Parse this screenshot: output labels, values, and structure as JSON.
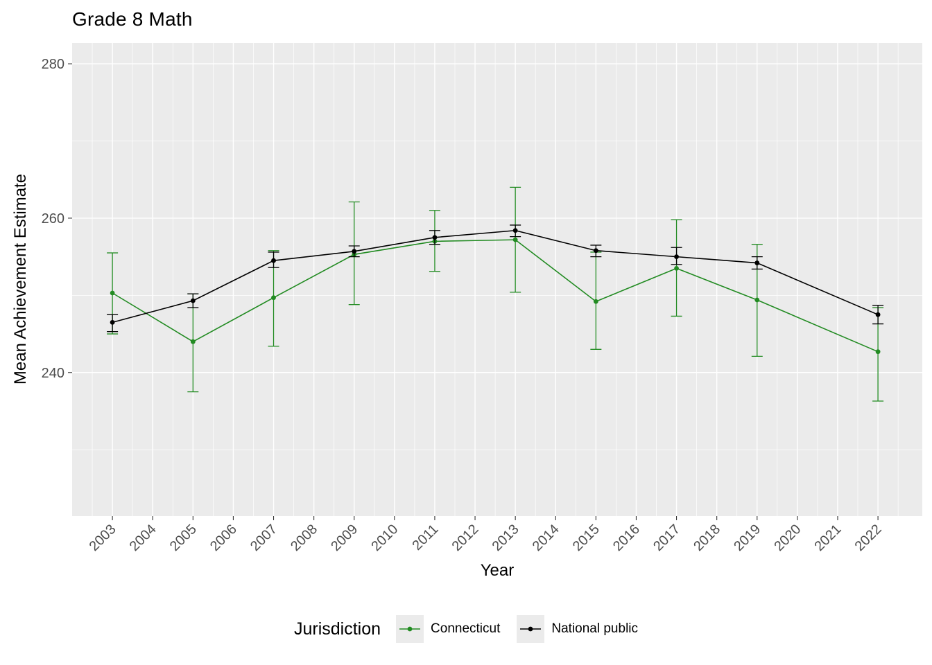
{
  "chart_data": {
    "type": "line",
    "title": "Grade 8 Math",
    "xlabel": "Year",
    "ylabel": "Mean Achievement Estimate",
    "legend_title": "Jurisdiction",
    "legend_position": "bottom",
    "panel_background": "#EBEBEB",
    "grid_color": "#FFFFFF",
    "tick_color": "#333333",
    "tick_label_color": "#4D4D4D",
    "grid": true,
    "error_bars": true,
    "x_ticks": [
      2003,
      2004,
      2005,
      2006,
      2007,
      2008,
      2009,
      2010,
      2011,
      2012,
      2013,
      2014,
      2015,
      2016,
      2017,
      2018,
      2019,
      2020,
      2021,
      2022
    ],
    "y_ticks": [
      240,
      260,
      280
    ],
    "y_minor_ticks": [
      230,
      250,
      270
    ],
    "xlim": [
      2002.0,
      2023.1
    ],
    "ylim": [
      221.4,
      282.7
    ],
    "series": [
      {
        "name": "Connecticut",
        "color": "#228B22",
        "x": [
          2003,
          2005,
          2007,
          2009,
          2011,
          2013,
          2015,
          2017,
          2019,
          2022
        ],
        "y": [
          250.3,
          244.0,
          249.7,
          255.3,
          257.0,
          257.2,
          249.2,
          253.5,
          249.4,
          242.7
        ],
        "ci_low": [
          245.0,
          237.5,
          243.4,
          248.8,
          253.1,
          250.4,
          243.0,
          247.3,
          242.1,
          236.3
        ],
        "ci_high": [
          255.5,
          250.2,
          255.8,
          262.1,
          261.0,
          264.0,
          255.6,
          259.8,
          256.6,
          248.4
        ]
      },
      {
        "name": "National public",
        "color": "#000000",
        "x": [
          2003,
          2005,
          2007,
          2009,
          2011,
          2013,
          2015,
          2017,
          2019,
          2022
        ],
        "y": [
          246.5,
          249.3,
          254.5,
          255.7,
          257.5,
          258.4,
          255.8,
          255.0,
          254.2,
          247.5
        ],
        "ci_low": [
          245.3,
          248.4,
          253.6,
          255.0,
          256.6,
          257.6,
          255.0,
          254.0,
          253.4,
          246.3
        ],
        "ci_high": [
          247.5,
          250.2,
          255.6,
          256.4,
          258.4,
          259.1,
          256.5,
          256.2,
          255.0,
          248.7
        ]
      }
    ]
  }
}
